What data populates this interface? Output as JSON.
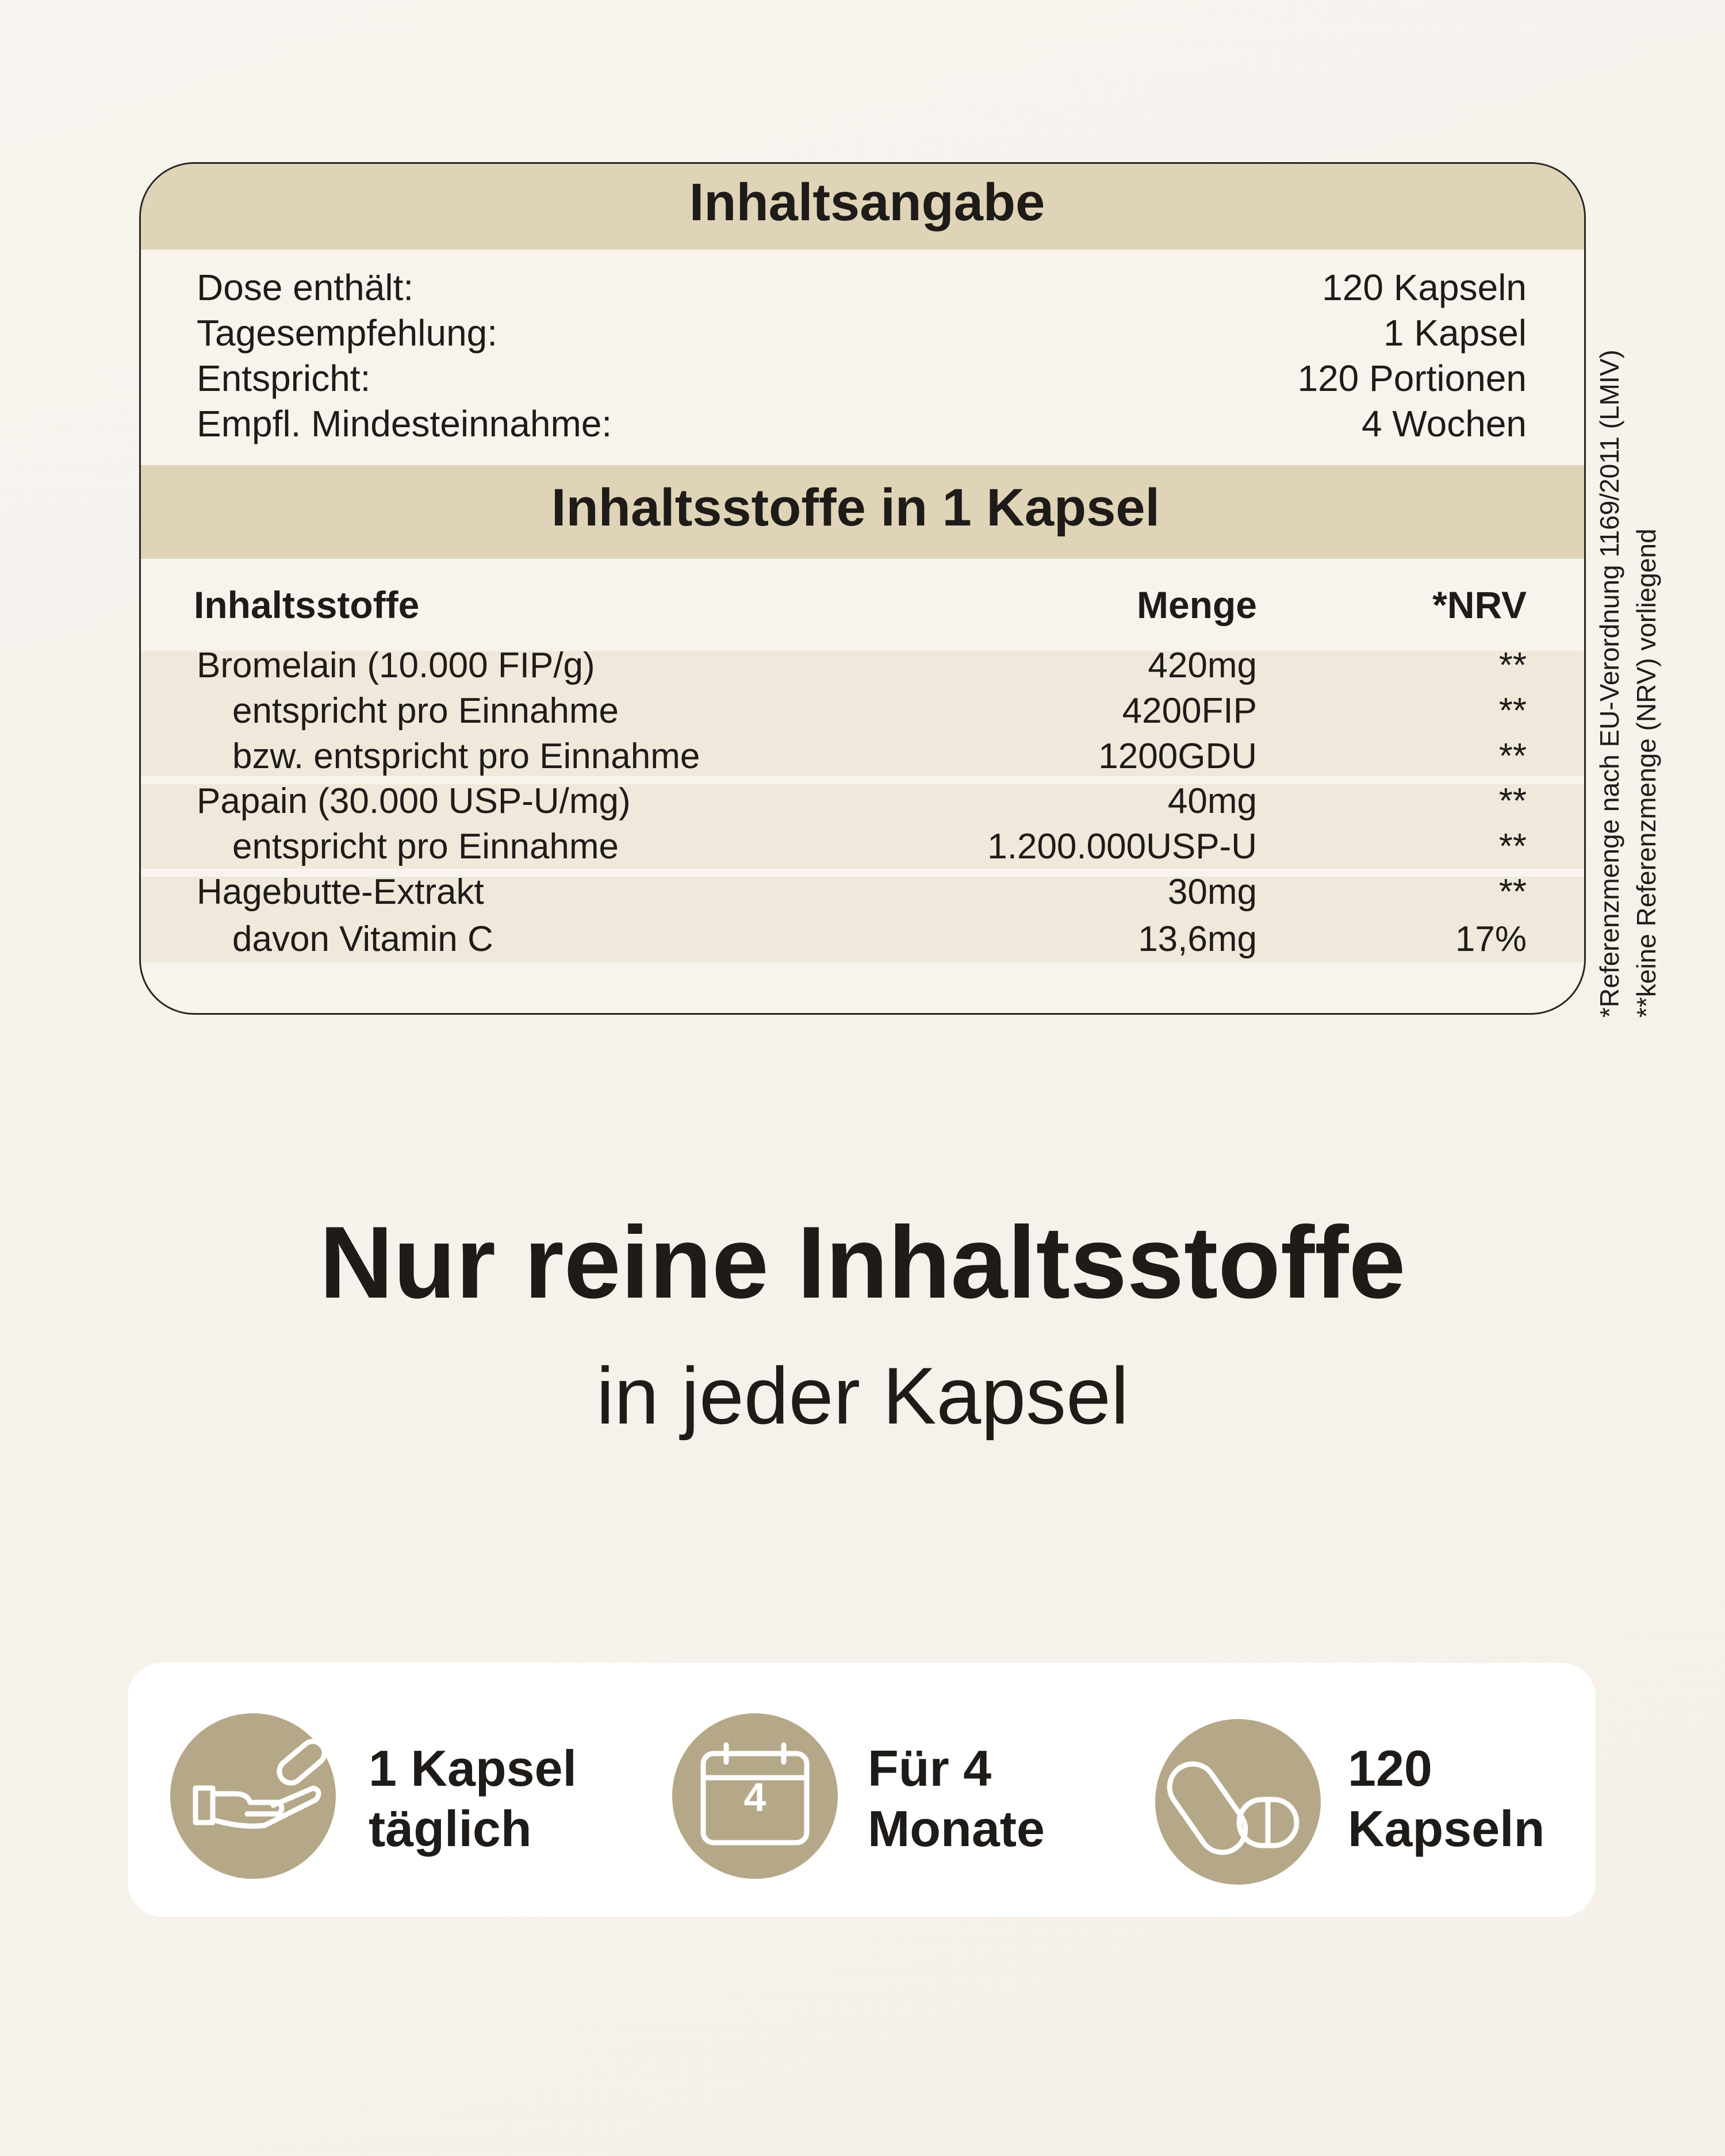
{
  "nutrition": {
    "title": "Inhaltsangabe",
    "info": [
      [
        "Dose enthält:",
        "120 Kapseln"
      ],
      [
        "Tagesempfehlung:",
        "1 Kapsel"
      ],
      [
        "Entspricht:",
        "120 Portionen"
      ],
      [
        "Empfl. Mindesteinnahme:",
        "4 Wochen"
      ]
    ],
    "subtitle": "Inhaltsstoffe in 1 Kapsel",
    "columns": [
      "Inhaltsstoffe",
      "Menge",
      "*NRV"
    ],
    "rows": [
      [
        "Bromelain (10.000 FIP/g)",
        "420mg",
        "**"
      ],
      [
        "entspricht pro Einnahme",
        "4200FIP",
        "**"
      ],
      [
        "bzw. entspricht pro Einnahme",
        "1200GDU",
        "**"
      ],
      [
        "Papain (30.000 USP-U/mg)",
        "40mg",
        "**"
      ],
      [
        "entspricht pro Einnahme",
        "1.200.000USP-U",
        "**"
      ],
      [
        "Hagebutte-Extrakt",
        "30mg",
        "**"
      ],
      [
        "davon Vitamin C",
        "13,6mg",
        "17%"
      ]
    ]
  },
  "footnotes": [
    "*Referenzmenge nach EU-Verordnung 1169/2011 (LMIV)",
    "**keine Referenzmenge (NRV) vorliegend"
  ],
  "headline": "Nur reine Inhaltsstoffe",
  "subheadline": "in jeder Kapsel",
  "calendar_day": "4",
  "features": [
    [
      "1 Kapsel",
      "täglich"
    ],
    [
      "Für 4",
      "Monate"
    ],
    [
      "120",
      "Kapseln"
    ]
  ]
}
